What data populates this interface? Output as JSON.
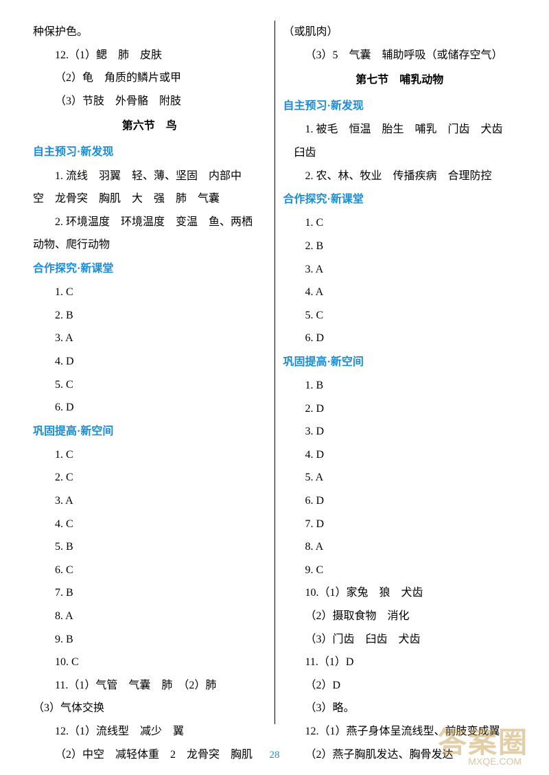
{
  "left": {
    "lines": [
      {
        "cls": "line",
        "text": "种保护色。"
      },
      {
        "cls": "line indent1",
        "text": "12.（1）鳃　肺　皮肤"
      },
      {
        "cls": "line indent1",
        "text": "（2）龟　角质的鳞片或甲"
      },
      {
        "cls": "line indent1",
        "text": "（3）节肢　外骨骼　附肢"
      },
      {
        "cls": "center-title",
        "text": "第六节　鸟"
      },
      {
        "cls": "section-head",
        "text": "自主预习·新发现"
      },
      {
        "cls": "line indent1",
        "text": "1. 流线　羽翼　轻、薄、坚固　内部中"
      },
      {
        "cls": "line",
        "text": "空　龙骨突　胸肌　大　强　肺　气囊"
      },
      {
        "cls": "line indent1",
        "text": "2. 环境温度　环境温度　变温　鱼、两栖"
      },
      {
        "cls": "line",
        "text": "动物、爬行动物"
      },
      {
        "cls": "section-head",
        "text": "合作探究·新课堂"
      },
      {
        "cls": "line indent1",
        "text": "1. C"
      },
      {
        "cls": "line indent1",
        "text": "2. B"
      },
      {
        "cls": "line indent1",
        "text": "3. A"
      },
      {
        "cls": "line indent1",
        "text": "4. D"
      },
      {
        "cls": "line indent1",
        "text": "5. C"
      },
      {
        "cls": "line indent1",
        "text": "6. D"
      },
      {
        "cls": "section-head",
        "text": "巩固提高·新空间"
      },
      {
        "cls": "line indent1",
        "text": "1. C"
      },
      {
        "cls": "line indent1",
        "text": "2. C"
      },
      {
        "cls": "line indent1",
        "text": "3. A"
      },
      {
        "cls": "line indent1",
        "text": "4. C"
      },
      {
        "cls": "line indent1",
        "text": "5. B"
      },
      {
        "cls": "line indent1",
        "text": "6. C"
      },
      {
        "cls": "line indent1",
        "text": "7. B"
      },
      {
        "cls": "line indent1",
        "text": "8. A"
      },
      {
        "cls": "line indent1",
        "text": "9. B"
      },
      {
        "cls": "line indent1",
        "text": "10. C"
      },
      {
        "cls": "line indent1",
        "text": "11.（1）气管　气囊　肺　（2）肺"
      },
      {
        "cls": "line",
        "text": "（3）气体交换"
      },
      {
        "cls": "line indent1",
        "text": "12.（1）流线型　减少　翼"
      },
      {
        "cls": "line indent1",
        "text": "（2）中空　减轻体重　2　龙骨突　胸肌"
      }
    ]
  },
  "right": {
    "lines": [
      {
        "cls": "line",
        "text": "（或肌肉）"
      },
      {
        "cls": "line indent1",
        "text": "（3）5　气囊　辅助呼吸（或储存空气）"
      },
      {
        "cls": "center-title",
        "text": "第七节　哺乳动物"
      },
      {
        "cls": "section-head",
        "text": "自主预习·新发现"
      },
      {
        "cls": "line indent1",
        "text": "1. 被毛　恒温　胎生　哺乳　门齿　犬齿"
      },
      {
        "cls": "line indent2",
        "text": "臼齿"
      },
      {
        "cls": "line indent1",
        "text": "2. 农、林、牧业　传播疾病　合理防控"
      },
      {
        "cls": "section-head",
        "text": "合作探究·新课堂"
      },
      {
        "cls": "line indent1",
        "text": "1. C"
      },
      {
        "cls": "line indent1",
        "text": "2. B"
      },
      {
        "cls": "line indent1",
        "text": "3. A"
      },
      {
        "cls": "line indent1",
        "text": "4. A"
      },
      {
        "cls": "line indent1",
        "text": "5. C"
      },
      {
        "cls": "line indent1",
        "text": "6. D"
      },
      {
        "cls": "section-head",
        "text": "巩固提高·新空间"
      },
      {
        "cls": "line indent1",
        "text": "1. B"
      },
      {
        "cls": "line indent1",
        "text": "2. D"
      },
      {
        "cls": "line indent1",
        "text": "3. D"
      },
      {
        "cls": "line indent1",
        "text": "4. D"
      },
      {
        "cls": "line indent1",
        "text": "5. A"
      },
      {
        "cls": "line indent1",
        "text": "6. D"
      },
      {
        "cls": "line indent1",
        "text": "7. D"
      },
      {
        "cls": "line indent1",
        "text": "8. A"
      },
      {
        "cls": "line indent1",
        "text": "9. C"
      },
      {
        "cls": "line indent1",
        "text": "10.（1）家兔　狼　犬齿"
      },
      {
        "cls": "line indent1",
        "text": "（2）摄取食物　消化"
      },
      {
        "cls": "line indent1",
        "text": "（3）门齿　臼齿　犬齿"
      },
      {
        "cls": "line indent1",
        "text": "11.（1）D"
      },
      {
        "cls": "line indent1",
        "text": "（2）D"
      },
      {
        "cls": "line indent1",
        "text": "（3）略。"
      },
      {
        "cls": "line indent1",
        "text": "12.（1）燕子身体呈流线型、前肢变成翼"
      },
      {
        "cls": "line indent1",
        "text": "（2）燕子胸肌发达、胸骨发达"
      }
    ]
  },
  "pageNumber": "28",
  "watermark": "答案圈",
  "watermarkSub": "MXQE.COM",
  "colors": {
    "sectionHead": "#1a8cd8",
    "text": "#000000",
    "watermark": "rgba(200,160,80,0.5)",
    "bg": "#ffffff"
  }
}
